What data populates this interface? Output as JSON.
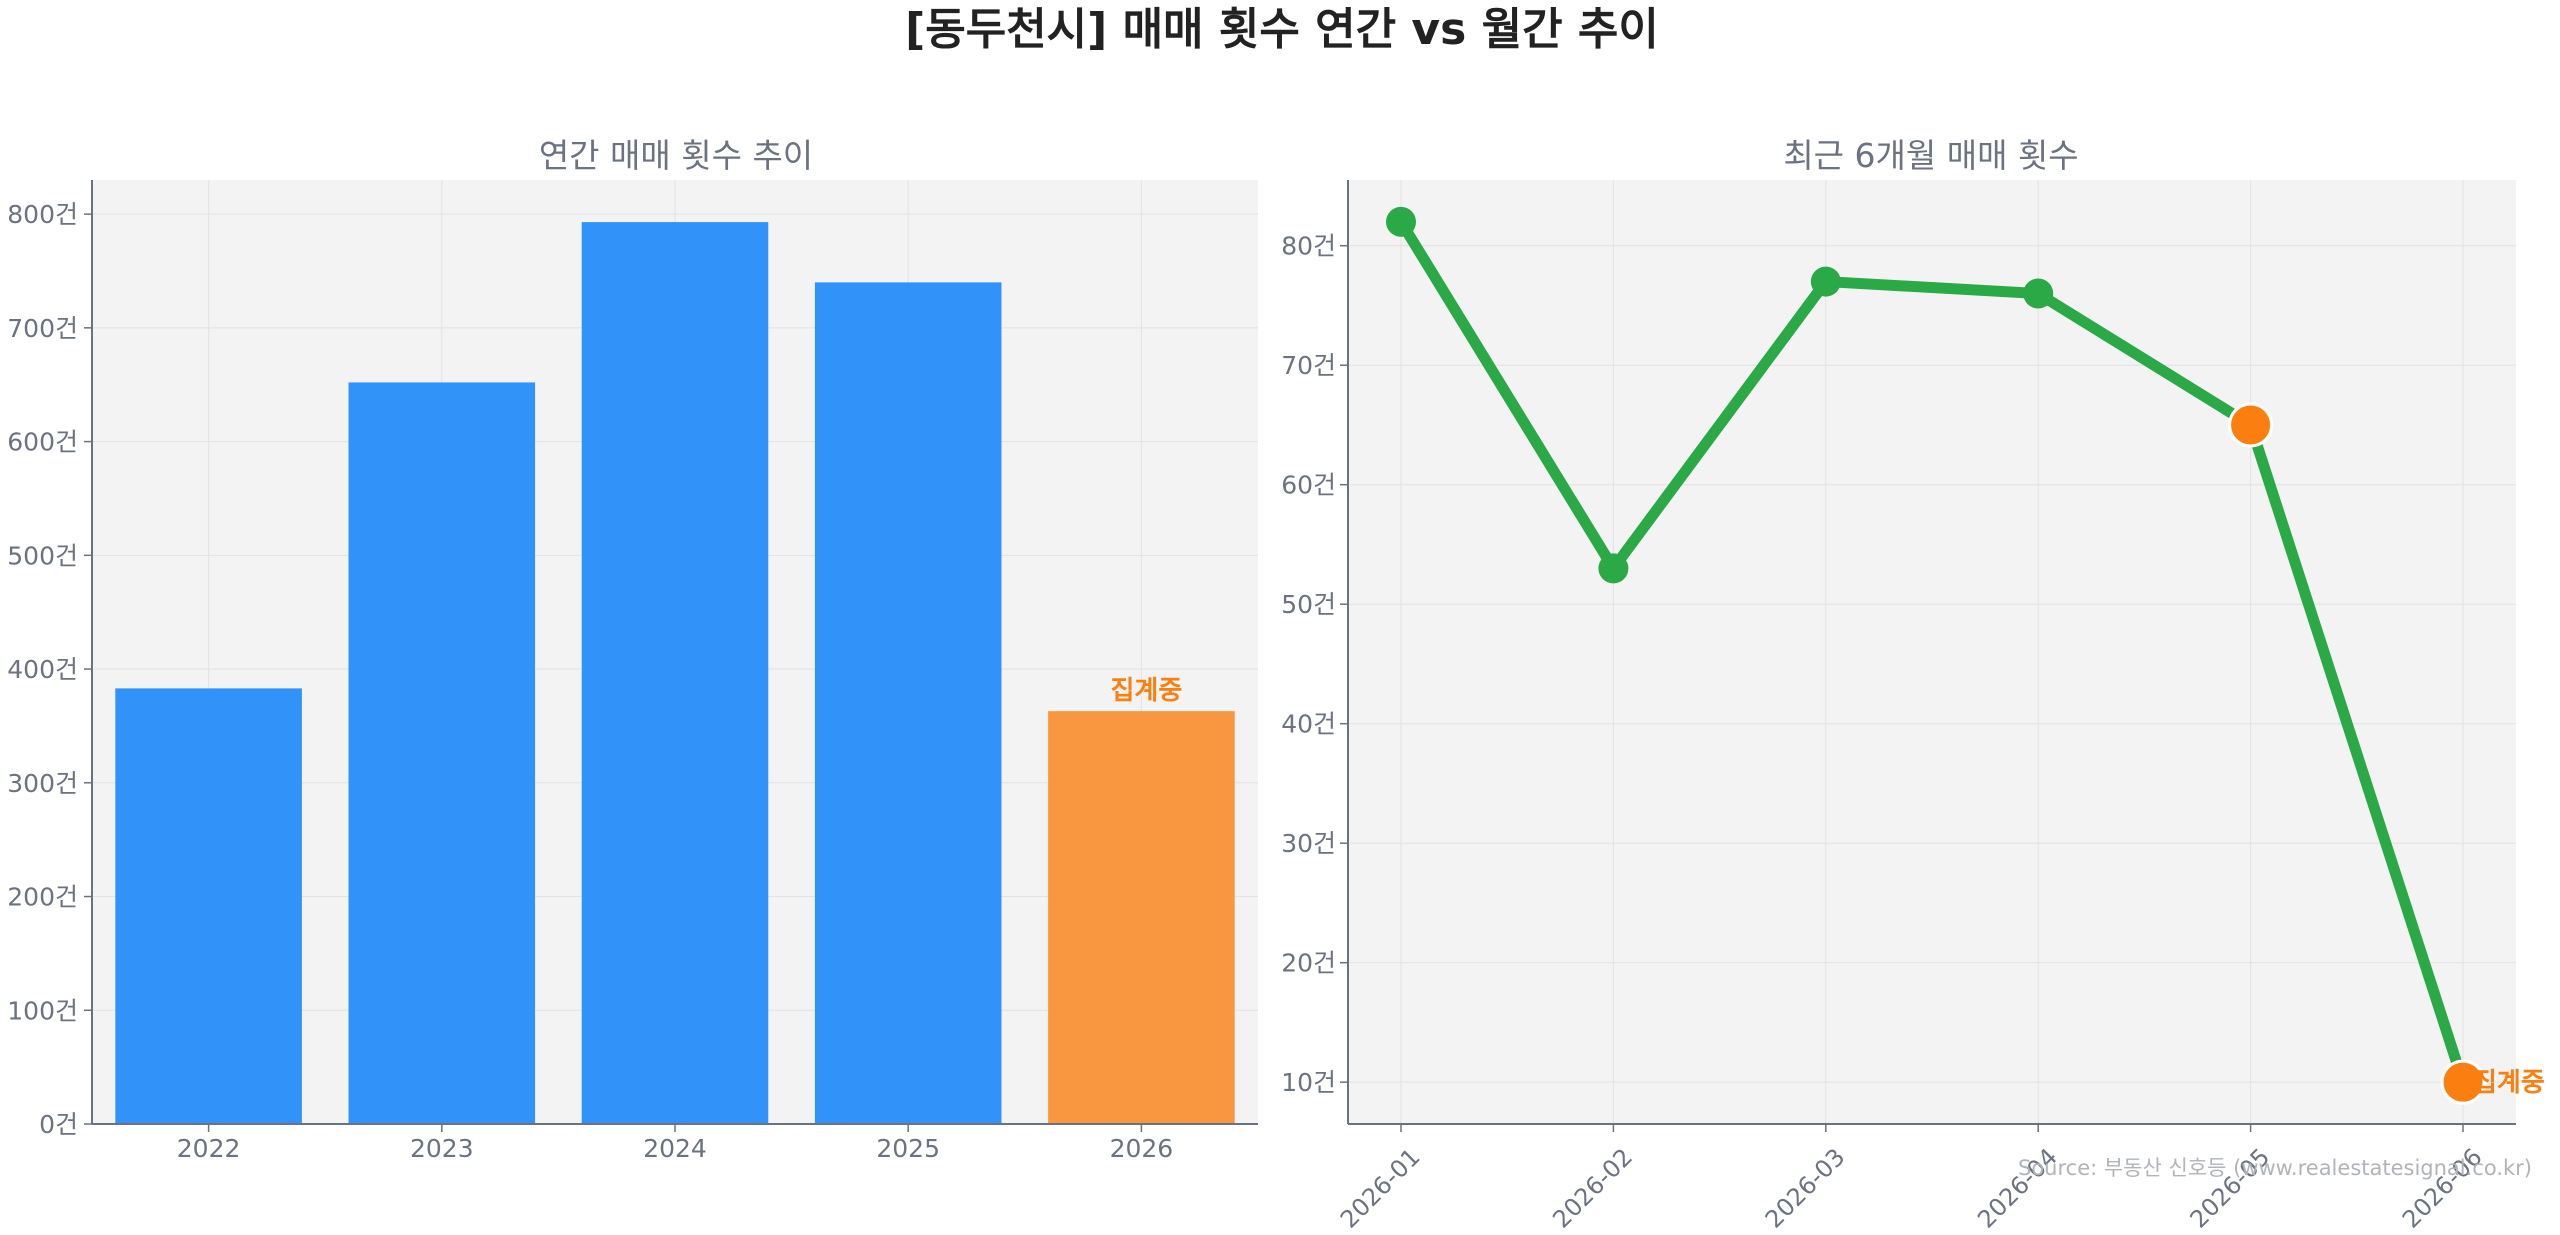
{
  "title": "[동두천시] 매매 횟수 연간 vs 월간 추이",
  "source": "Source: 부동산 신호등 (www.realestatesignal.co.kr)",
  "colors": {
    "bar": "#3192f9",
    "bar_partial": "#f99740",
    "line": "#2aa946",
    "marker_partial": "#fb7f10",
    "annotation": "#fb7f10",
    "panel_bg": "#f3f3f3"
  },
  "chart_data": [
    {
      "type": "bar",
      "title": "연간 매매 횟수 추이",
      "categories": [
        "2022",
        "2023",
        "2024",
        "2025",
        "2026"
      ],
      "values": [
        383,
        652,
        793,
        740,
        363
      ],
      "partial_index": 4,
      "annotation": "집계중",
      "ylim": [
        0,
        830
      ],
      "yticks": [
        0,
        100,
        200,
        300,
        400,
        500,
        600,
        700,
        800
      ],
      "yticklabels": [
        "0건",
        "100건",
        "200건",
        "300건",
        "400건",
        "500건",
        "600건",
        "700건",
        "800건"
      ],
      "grid": true
    },
    {
      "type": "line",
      "title": "최근 6개월 매매 횟수",
      "x": [
        "2026-01",
        "2026-02",
        "2026-03",
        "2026-04",
        "2026-05",
        "2026-06"
      ],
      "values": [
        82,
        53,
        77,
        76,
        65,
        10
      ],
      "partial_indices": [
        4,
        5
      ],
      "annotation": "집계중",
      "ylim": [
        6.5,
        85.5
      ],
      "yticks": [
        10,
        20,
        30,
        40,
        50,
        60,
        70,
        80
      ],
      "yticklabels": [
        "10건",
        "20건",
        "30건",
        "40건",
        "50건",
        "60건",
        "70건",
        "80건"
      ],
      "grid": true
    }
  ]
}
